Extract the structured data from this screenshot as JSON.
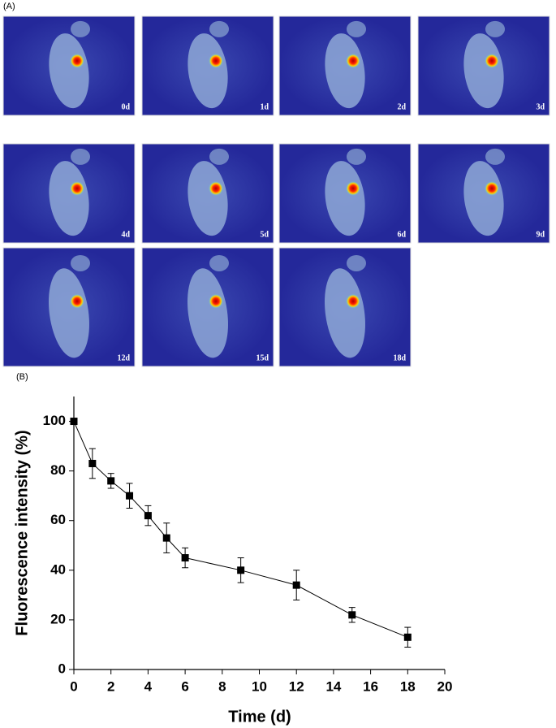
{
  "panel_labels": [
    "(A)",
    "(B)"
  ],
  "images": [
    {
      "label": "0d"
    },
    {
      "label": "1d"
    },
    {
      "label": "2d"
    },
    {
      "label": "3d"
    },
    {
      "label": "4d"
    },
    {
      "label": "5d"
    },
    {
      "label": "6d"
    },
    {
      "label": "9d"
    },
    {
      "label": "12d"
    },
    {
      "label": "15d"
    },
    {
      "label": "18d"
    }
  ],
  "chart_data": {
    "type": "line",
    "x_label": "Time (d)",
    "y_label": "Fluorescence intensity (%)",
    "x": [
      0,
      1,
      2,
      3,
      4,
      5,
      6,
      9,
      12,
      15,
      18
    ],
    "values": [
      100,
      83,
      76,
      70,
      62,
      53,
      45,
      40,
      34,
      22,
      13
    ],
    "errors": [
      0,
      6,
      3,
      5,
      4,
      6,
      4,
      5,
      6,
      3,
      4
    ],
    "color": "#000000",
    "xlim": [
      0,
      20
    ],
    "xticks": [
      0,
      2,
      4,
      6,
      8,
      10,
      12,
      14,
      16,
      18,
      20
    ],
    "ylim": [
      0,
      110
    ],
    "yticks": [
      0,
      20,
      40,
      60,
      80,
      100
    ]
  }
}
